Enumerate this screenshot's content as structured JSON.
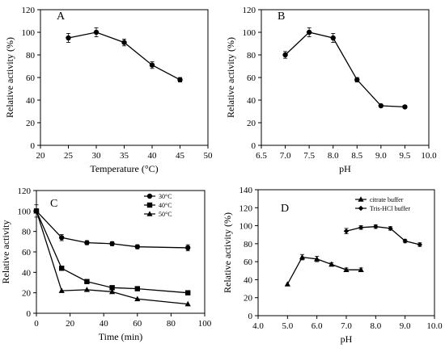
{
  "chart_data": [
    {
      "panel": "A",
      "type": "line",
      "xlabel": "Temperature (°C)",
      "ylabel": "Relative activity (%)",
      "xlim": [
        20,
        50
      ],
      "ylim": [
        0,
        120
      ],
      "xticks": [
        20,
        25,
        30,
        35,
        40,
        45,
        50
      ],
      "yticks": [
        0,
        20,
        40,
        60,
        80,
        100,
        120
      ],
      "xtick_labels": [
        "20",
        "25",
        "30",
        "35",
        "40",
        "45",
        "50"
      ],
      "series": [
        {
          "marker": "circle",
          "x": [
            25,
            30,
            35,
            40,
            45
          ],
          "y": [
            95,
            100,
            91,
            71,
            58
          ],
          "err": [
            4,
            4,
            3,
            3,
            2
          ]
        }
      ],
      "legend": []
    },
    {
      "panel": "B",
      "type": "line",
      "xlabel": "pH",
      "ylabel": "Relative activity (%)",
      "xlim": [
        6.5,
        10.0
      ],
      "ylim": [
        0,
        120
      ],
      "xticks": [
        6.5,
        7.0,
        7.5,
        8.0,
        8.5,
        9.0,
        9.5,
        10.0
      ],
      "yticks": [
        0,
        20,
        40,
        60,
        80,
        100,
        120
      ],
      "xtick_labels": [
        "6.5",
        "7.0",
        "7.5",
        "8.0",
        "8.5",
        "9.0",
        "9.5",
        "10.0"
      ],
      "series": [
        {
          "marker": "circle",
          "x": [
            7.0,
            7.5,
            8.0,
            8.5,
            9.0,
            9.5
          ],
          "y": [
            80,
            100,
            95,
            58,
            35,
            34
          ],
          "err": [
            3,
            4,
            4,
            2,
            1,
            1
          ]
        }
      ],
      "legend": []
    },
    {
      "panel": "C",
      "type": "line",
      "xlabel": "Time (min)",
      "ylabel": "Relative activity",
      "xlim": [
        0,
        100
      ],
      "ylim": [
        0,
        120
      ],
      "xticks": [
        0,
        20,
        40,
        60,
        80,
        100
      ],
      "yticks": [
        0,
        20,
        40,
        60,
        80,
        100,
        120
      ],
      "xtick_labels": [
        "0",
        "20",
        "40",
        "60",
        "80",
        "100"
      ],
      "series": [
        {
          "name": "30°C",
          "marker": "circle",
          "x": [
            0,
            15,
            30,
            45,
            60,
            90
          ],
          "y": [
            100,
            74,
            69,
            68,
            65,
            64
          ],
          "err": [
            6,
            3,
            2,
            2,
            2,
            3
          ]
        },
        {
          "name": "40°C",
          "marker": "square",
          "x": [
            0,
            15,
            30,
            45,
            60,
            90
          ],
          "y": [
            100,
            44,
            31,
            25,
            24,
            20
          ],
          "err": [
            0,
            0,
            0,
            0,
            0,
            0
          ]
        },
        {
          "name": "50°C",
          "marker": "triangle",
          "x": [
            0,
            15,
            30,
            45,
            60,
            90
          ],
          "y": [
            100,
            22,
            23,
            21,
            14,
            9
          ],
          "err": [
            0,
            0,
            0,
            0,
            0,
            0
          ]
        }
      ],
      "legend": [
        {
          "name": "30°C",
          "marker": "circle"
        },
        {
          "name": "40°C",
          "marker": "square"
        },
        {
          "name": "50°C",
          "marker": "triangle"
        }
      ],
      "legend_position": "top-right"
    },
    {
      "panel": "D",
      "type": "line",
      "xlabel": "pH",
      "ylabel": "Relative activity (%)",
      "xlim": [
        4.0,
        10.0
      ],
      "ylim": [
        0,
        140
      ],
      "xticks": [
        4.0,
        5.0,
        6.0,
        7.0,
        8.0,
        9.0,
        10.0
      ],
      "yticks": [
        0,
        20,
        40,
        60,
        80,
        100,
        120,
        140
      ],
      "xtick_labels": [
        "4.0",
        "5.0",
        "6.0",
        "7.0",
        "8.0",
        "9.0",
        "10.0"
      ],
      "series": [
        {
          "name": "citrate buffer",
          "marker": "triangle",
          "x": [
            5.0,
            5.5,
            6.0,
            6.5,
            7.0,
            7.5
          ],
          "y": [
            35,
            65,
            63,
            57,
            51,
            51
          ],
          "err": [
            0,
            3,
            3,
            2,
            2,
            2
          ]
        },
        {
          "name": "Tris-HCl buffer",
          "marker": "diamond",
          "x": [
            7.0,
            7.5,
            8.0,
            8.5,
            9.0,
            9.5
          ],
          "y": [
            94,
            98,
            99,
            97,
            83,
            79
          ],
          "err": [
            3,
            2,
            2,
            2,
            2,
            2
          ]
        }
      ],
      "legend": [
        {
          "name": "citrate buffer",
          "marker": "triangle"
        },
        {
          "name": "Tris-HCl buffer",
          "marker": "diamond"
        }
      ],
      "legend_position": "top-right"
    }
  ]
}
